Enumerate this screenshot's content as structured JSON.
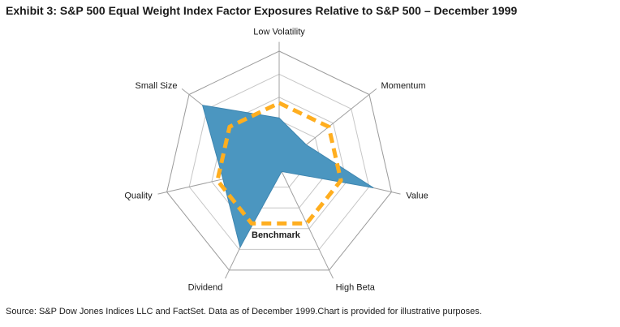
{
  "header": {
    "title": "Exhibit 3: S&P 500 Equal Weight Index Factor Exposures Relative to S&P 500 – December 1999"
  },
  "footer": {
    "source": "Source: S&P Dow Jones Indices LLC and FactSet. Data as of December 1999.Chart is provided for illustrative purposes."
  },
  "chart_data": {
    "type": "radar",
    "title": "S&P 500 Equal Weight Index Factor Exposures Relative to S&P 500 – December 1999",
    "axes": [
      "Low Volatility",
      "Momentum",
      "Value",
      "High Beta",
      "Dividend",
      "Quality",
      "Small Size"
    ],
    "rings": 5,
    "range": [
      0,
      1
    ],
    "series": [
      {
        "name": "S&P 500 Equal Weight Index",
        "style": "filled",
        "color": "#4b96c0",
        "values": [
          0.42,
          0.3,
          0.84,
          0.05,
          0.78,
          0.5,
          0.85
        ]
      },
      {
        "name": "Benchmark",
        "style": "dashed",
        "color": "#ffae1f",
        "values": [
          0.55,
          0.55,
          0.55,
          0.55,
          0.55,
          0.55,
          0.55
        ]
      }
    ],
    "annotation": "Benchmark"
  }
}
